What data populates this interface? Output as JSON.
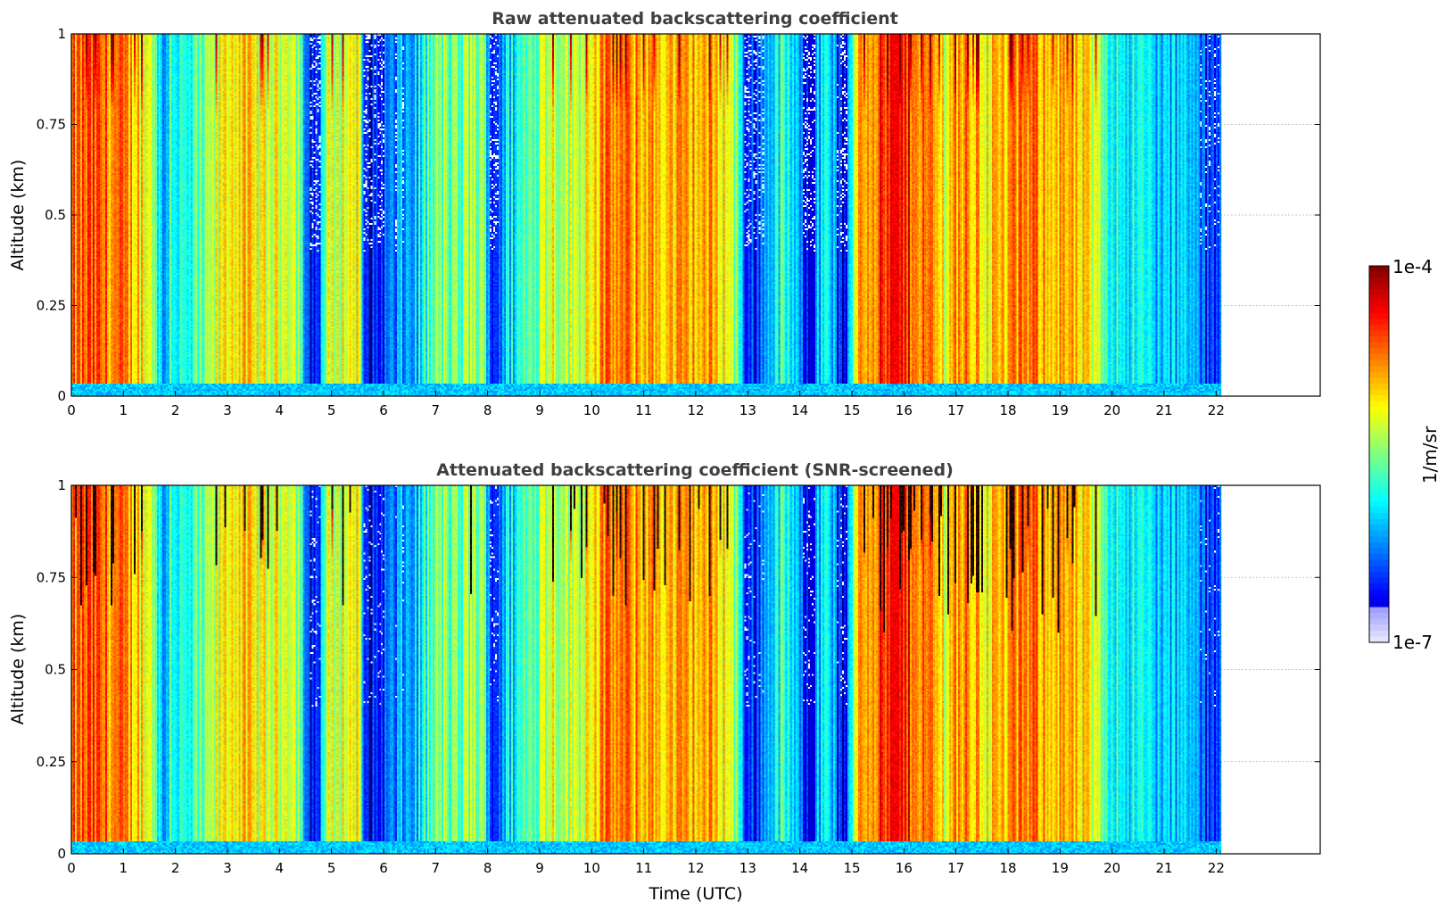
{
  "chart_data": [
    {
      "type": "heatmap",
      "title": "Raw attenuated backscattering coefficient",
      "xlabel": "",
      "ylabel": "Altitude (km)",
      "xlim": [
        0,
        24
      ],
      "ylim": [
        0,
        1
      ],
      "xticks": [
        "0",
        "1",
        "2",
        "3",
        "4",
        "5",
        "6",
        "7",
        "8",
        "9",
        "10",
        "11",
        "12",
        "13",
        "14",
        "15",
        "16",
        "17",
        "18",
        "19",
        "20",
        "21",
        "22"
      ],
      "yticks": [
        "0",
        "0.25",
        "0.5",
        "0.75",
        "1"
      ],
      "data_end_time": 22.1,
      "grid": true,
      "screened": false
    },
    {
      "type": "heatmap",
      "title": "Attenuated backscattering coefficient (SNR-screened)",
      "xlabel": "Time (UTC)",
      "ylabel": "Altitude (km)",
      "xlim": [
        0,
        24
      ],
      "ylim": [
        0,
        1
      ],
      "xticks": [
        "0",
        "1",
        "2",
        "3",
        "4",
        "5",
        "6",
        "7",
        "8",
        "9",
        "10",
        "11",
        "12",
        "13",
        "14",
        "15",
        "16",
        "17",
        "18",
        "19",
        "20",
        "21",
        "22"
      ],
      "yticks": [
        "0",
        "0.25",
        "0.5",
        "0.75",
        "1"
      ],
      "data_end_time": 22.1,
      "grid": true,
      "screened": true
    }
  ],
  "colorbar": {
    "label": "1/m/sr",
    "max_label": "1e-4",
    "min_label": "1e-7",
    "scale": "log",
    "colormap": "jet"
  },
  "signal_profile": {
    "time_nodes": [
      0,
      0.3,
      0.8,
      1.3,
      1.6,
      1.75,
      1.9,
      2.2,
      2.6,
      2.9,
      3.2,
      3.6,
      3.9,
      4.2,
      4.4,
      4.55,
      4.75,
      4.9,
      5.2,
      5.5,
      5.65,
      5.8,
      6.0,
      6.3,
      6.6,
      6.8,
      7.1,
      7.4,
      7.7,
      7.95,
      8.1,
      8.3,
      8.6,
      8.9,
      9.2,
      9.5,
      9.7,
      10.0,
      10.4,
      10.8,
      11.2,
      11.6,
      12.0,
      12.3,
      12.6,
      12.85,
      13.0,
      13.2,
      13.4,
      13.6,
      13.8,
      14.0,
      14.2,
      14.4,
      14.55,
      14.75,
      14.9,
      15.1,
      15.5,
      15.9,
      16.3,
      16.6,
      16.8,
      17.0,
      17.3,
      17.6,
      18.0,
      18.4,
      18.8,
      19.2,
      19.5,
      19.8,
      20.1,
      20.4,
      20.7,
      21.0,
      21.3,
      21.6,
      21.8,
      22.1
    ],
    "level_nodes": [
      0.72,
      0.78,
      0.75,
      0.68,
      0.55,
      0.22,
      0.45,
      0.35,
      0.48,
      0.62,
      0.68,
      0.6,
      0.58,
      0.64,
      0.5,
      0.1,
      0.18,
      0.55,
      0.6,
      0.65,
      0.1,
      0.12,
      0.18,
      0.25,
      0.3,
      0.4,
      0.5,
      0.45,
      0.55,
      0.45,
      0.15,
      0.3,
      0.4,
      0.5,
      0.62,
      0.55,
      0.55,
      0.68,
      0.75,
      0.72,
      0.7,
      0.68,
      0.7,
      0.7,
      0.65,
      0.4,
      0.12,
      0.2,
      0.32,
      0.4,
      0.38,
      0.22,
      0.15,
      0.3,
      0.45,
      0.12,
      0.1,
      0.72,
      0.8,
      0.85,
      0.78,
      0.7,
      0.62,
      0.75,
      0.7,
      0.65,
      0.7,
      0.75,
      0.72,
      0.68,
      0.62,
      0.5,
      0.4,
      0.38,
      0.35,
      0.3,
      0.32,
      0.28,
      0.15,
      0.25
    ]
  }
}
